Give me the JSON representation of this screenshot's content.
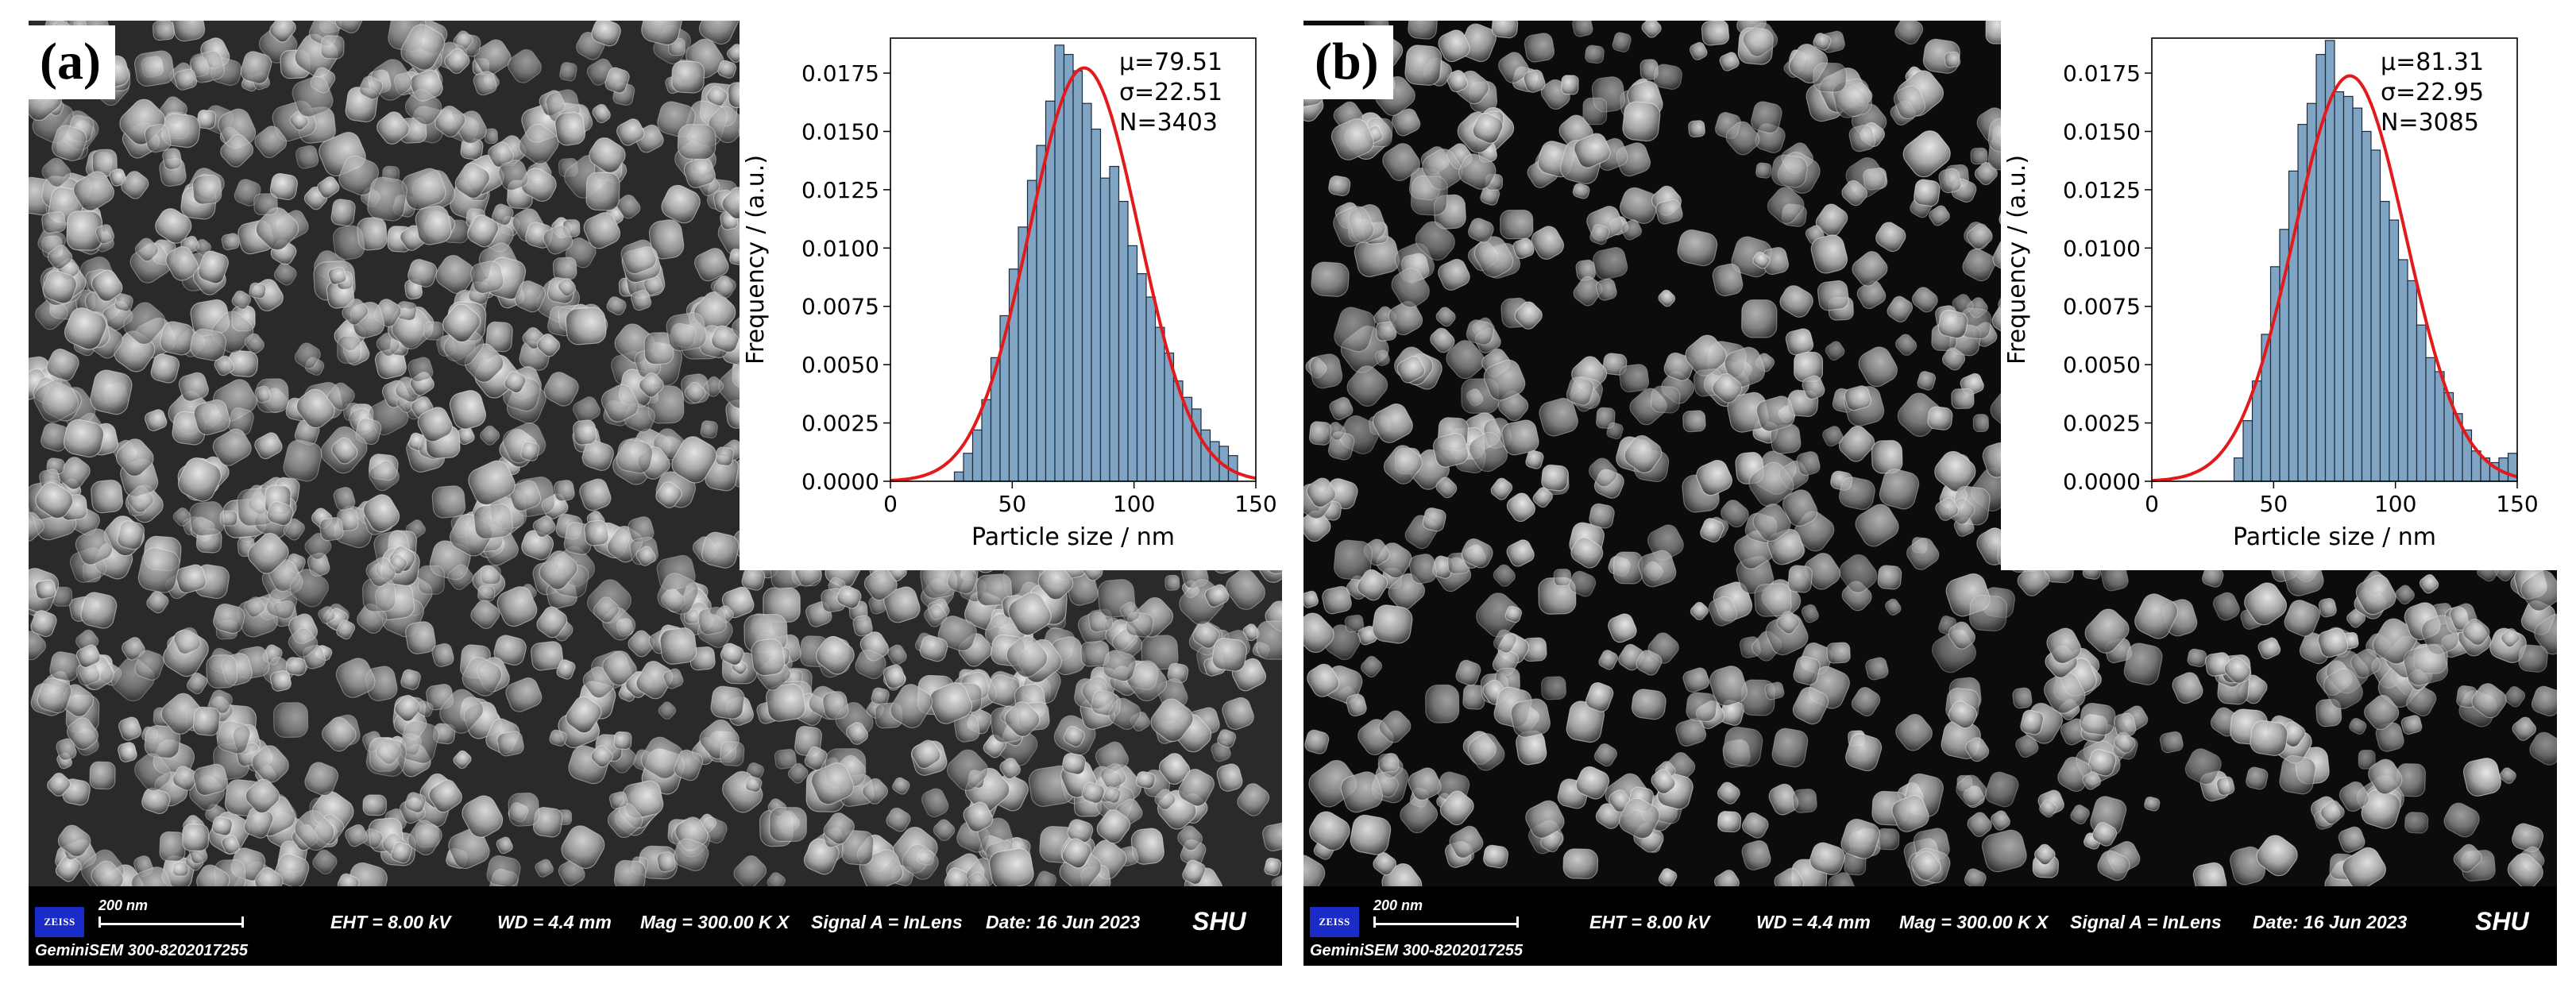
{
  "panels": [
    {
      "label": "(a)",
      "histogram": {
        "ylabel": "Frequency / (a.u.)",
        "xlabel": "Particle size / nm",
        "stats": [
          "μ=79.51",
          "σ=22.51",
          "N=3403"
        ],
        "xticks": [
          "0",
          "50",
          "100",
          "150"
        ],
        "yticks": [
          "0.0000",
          "0.0025",
          "0.0050",
          "0.0075",
          "0.0100",
          "0.0125",
          "0.0150",
          "0.0175"
        ]
      },
      "info_bar": {
        "logo": "ZEISS",
        "scale_bar": "200 nm",
        "eht": "EHT =  8.00 kV",
        "wd": "WD =  4.4 mm",
        "mag": "Mag =  300.00 K X",
        "signal": "Signal A = InLens",
        "date": "Date: 16 Jun 2023",
        "org": "SHU",
        "device": "GeminiSEM 300-8202017255"
      }
    },
    {
      "label": "(b)",
      "histogram": {
        "ylabel": "Frequency / (a.u.)",
        "xlabel": "Particle size / nm",
        "stats": [
          "μ=81.31",
          "σ=22.95",
          "N=3085"
        ],
        "xticks": [
          "0",
          "50",
          "100",
          "150"
        ],
        "yticks": [
          "0.0000",
          "0.0025",
          "0.0050",
          "0.0075",
          "0.0100",
          "0.0125",
          "0.0150",
          "0.0175"
        ]
      },
      "info_bar": {
        "logo": "ZEISS",
        "scale_bar": "200 nm",
        "eht": "EHT =  8.00 kV",
        "wd": "WD =  4.4 mm",
        "mag": "Mag =  300.00 K X",
        "signal": "Signal A = InLens",
        "date": "Date: 16 Jun 2023",
        "org": "SHU",
        "device": "GeminiSEM 300-8202017255"
      }
    }
  ],
  "chart_data": [
    {
      "type": "bar",
      "title": "",
      "xlabel": "Particle size / nm",
      "ylabel": "Frequency / (a.u.)",
      "xlim": [
        0,
        150
      ],
      "ylim": [
        0,
        0.019
      ],
      "bin_width": 3.75,
      "bin_starts": [
        26.25,
        30,
        33.75,
        37.5,
        41.25,
        45,
        48.75,
        52.5,
        56.25,
        60,
        63.75,
        67.5,
        71.25,
        75,
        78.75,
        82.5,
        86.25,
        90,
        93.75,
        97.5,
        101.25,
        105,
        108.75,
        112.5,
        116.25,
        120,
        123.75,
        127.5,
        131.25,
        135,
        138.75
      ],
      "values": [
        0.0004,
        0.0012,
        0.0022,
        0.0035,
        0.0053,
        0.0071,
        0.0091,
        0.0109,
        0.0129,
        0.0144,
        0.0163,
        0.0187,
        0.0183,
        0.0176,
        0.0162,
        0.0151,
        0.013,
        0.0135,
        0.012,
        0.0101,
        0.0089,
        0.0079,
        0.0066,
        0.0055,
        0.0043,
        0.0036,
        0.0031,
        0.0022,
        0.0017,
        0.0015,
        0.0011
      ],
      "fit": {
        "name": "normal",
        "mu": 79.51,
        "sigma": 22.51
      },
      "annotations": [
        "μ=79.51",
        "σ=22.51",
        "N=3403"
      ],
      "colors": {
        "bars": "#7fa4c4",
        "edges": "#1e2a3a",
        "fit": "#e31a1c"
      }
    },
    {
      "type": "bar",
      "title": "",
      "xlabel": "Particle size / nm",
      "ylabel": "Frequency / (a.u.)",
      "xlim": [
        0,
        150
      ],
      "ylim": [
        0,
        0.019
      ],
      "bin_width": 3.75,
      "bin_starts": [
        33.75,
        37.5,
        41.25,
        45,
        48.75,
        52.5,
        56.25,
        60,
        63.75,
        67.5,
        71.25,
        75,
        78.75,
        82.5,
        86.25,
        90,
        93.75,
        97.5,
        101.25,
        105,
        108.75,
        112.5,
        116.25,
        120,
        123.75,
        127.5,
        131.25,
        135,
        138.75,
        142.5,
        146.25
      ],
      "values": [
        0.001,
        0.0026,
        0.0043,
        0.0063,
        0.0092,
        0.0108,
        0.0133,
        0.0153,
        0.0162,
        0.0183,
        0.0189,
        0.0167,
        0.0165,
        0.016,
        0.015,
        0.0142,
        0.012,
        0.0112,
        0.0095,
        0.0086,
        0.0067,
        0.0053,
        0.0047,
        0.0038,
        0.0029,
        0.0022,
        0.0013,
        0.001,
        0.0008,
        0.001,
        0.0012
      ],
      "fit": {
        "name": "normal",
        "mu": 81.31,
        "sigma": 22.95
      },
      "annotations": [
        "μ=81.31",
        "σ=22.95",
        "N=3085"
      ],
      "colors": {
        "bars": "#7fa4c4",
        "edges": "#1e2a3a",
        "fit": "#e31a1c"
      }
    }
  ]
}
